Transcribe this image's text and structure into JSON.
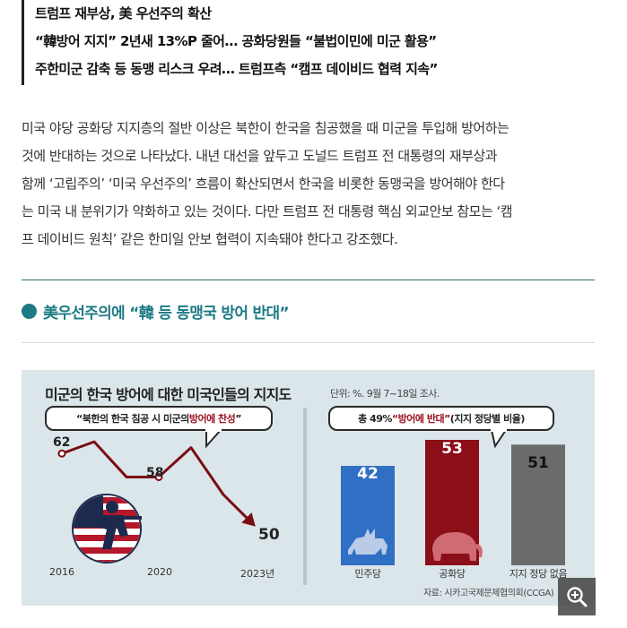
{
  "subheads": [
    "트럼프 재부상, 美 우선주의 확산",
    "“韓방어 지지” 2년새 13%P 줄어… 공화당원들 “불법이민에 미군 활용”",
    "주한미군 감축 등 동맹 리스크 우려… 트럼프측 “캠프 데이비드 협력 지속”"
  ],
  "body": [
    "미국 야당 공화당 지지층의 절반 이상은 북한이 한국을 침공했을 때 미군을 투입해 방어하는",
    "것에 반대하는 것으로 나타났다. 내년 대선을 앞두고 도널드 트럼프 전 대통령의 재부상과",
    "함께 ‘고립주의’ ‘미국 우선주의’ 흐름이 확산되면서 한국을 비롯한 동맹국을 방어해야 한다",
    "는 미국 내 분위기가 약화하고 있는 것이다. 다만 트럼프 전 대통령 핵심 외교안보 참모는 ‘캠",
    "프 데이비드 원칙’ 같은 한미일 안보 협력이 지속돼야 한다고 강조했다."
  ],
  "section_title": "美우선주의에 “韓 등 동맹국 방어 반대”",
  "figure": {
    "title": "미군의 한국 방어에 대한 미국인들의 지지도",
    "unit": "단위: %. 9월 7~18일 조사.",
    "bubble_left": {
      "prefix": "“북한의 한국 침공 시 미군의 ",
      "highlight": "방어에 찬성",
      "suffix": "”"
    },
    "bubble_right": {
      "prefix": "총 49% ",
      "highlight": "“방어에 반대”",
      "suffix": " (지지 정당별 비율)"
    },
    "source": "자료: 시카고국제문제협의회(CCGA)",
    "icons": [
      "soldier-flag-icon",
      "donkey-icon",
      "elephant-icon"
    ]
  },
  "chart_data": [
    {
      "type": "line",
      "x": [
        "2016",
        "2017",
        "2018",
        "2019",
        "2020",
        "2021",
        "2022",
        "2023"
      ],
      "x_tick_labels": [
        "2016",
        "2020",
        "2023년"
      ],
      "values": [
        62,
        64,
        58,
        58,
        58,
        63,
        55,
        50
      ],
      "labeled_points": [
        {
          "x": "2016",
          "y": 62,
          "label": "62"
        },
        {
          "x": "2020",
          "y": 58,
          "label": "58"
        },
        {
          "x": "2023",
          "y": 50,
          "label": "50"
        }
      ],
      "color": "#7a0d14",
      "ylim": [
        48,
        66
      ]
    },
    {
      "type": "bar",
      "categories": [
        "민주당",
        "공화당",
        "지지 정당 없음"
      ],
      "values": [
        42,
        53,
        51
      ],
      "colors": [
        "#2f6fc4",
        "#8b0e18",
        "#6b6b6b"
      ],
      "ylim": [
        0,
        60
      ]
    }
  ],
  "zoom_icon": "magnifier-plus-icon"
}
